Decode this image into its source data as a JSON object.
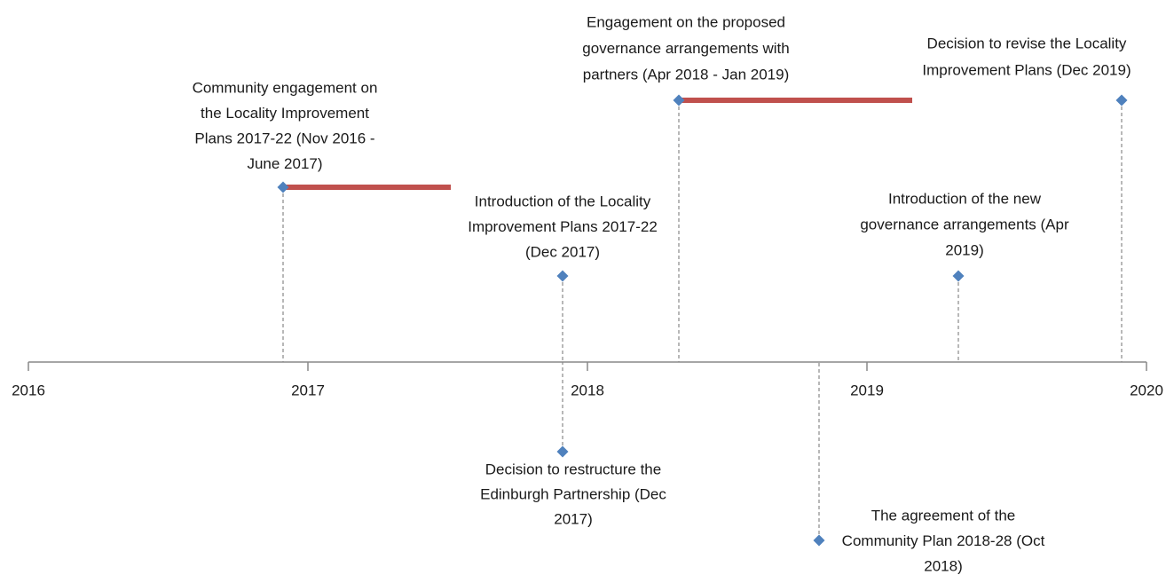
{
  "axis": {
    "ticks": [
      "2016",
      "2017",
      "2018",
      "2019",
      "2020"
    ]
  },
  "events": [
    {
      "lines": [
        "Community engagement on",
        "the Locality Improvement",
        "Plans 2017-22 (Nov 2016 -",
        "June 2017)"
      ]
    },
    {
      "lines": [
        "Introduction of the Locality",
        "Improvement Plans 2017-22",
        "(Dec 2017)"
      ]
    },
    {
      "lines": [
        "Engagement on the proposed",
        "governance arrangements with",
        "partners (Apr 2018 - Jan 2019)"
      ]
    },
    {
      "lines": [
        "Decision to revise the Locality",
        "Improvement Plans (Dec 2019)"
      ]
    },
    {
      "lines": [
        "Introduction of the new",
        "governance arrangements (Apr",
        "2019)"
      ]
    },
    {
      "lines": [
        "Decision to restructure the",
        "Edinburgh Partnership (Dec",
        "2017)"
      ]
    },
    {
      "lines": [
        "The agreement of the",
        "Community Plan 2018-28 (Oct",
        "2018)"
      ]
    }
  ]
}
